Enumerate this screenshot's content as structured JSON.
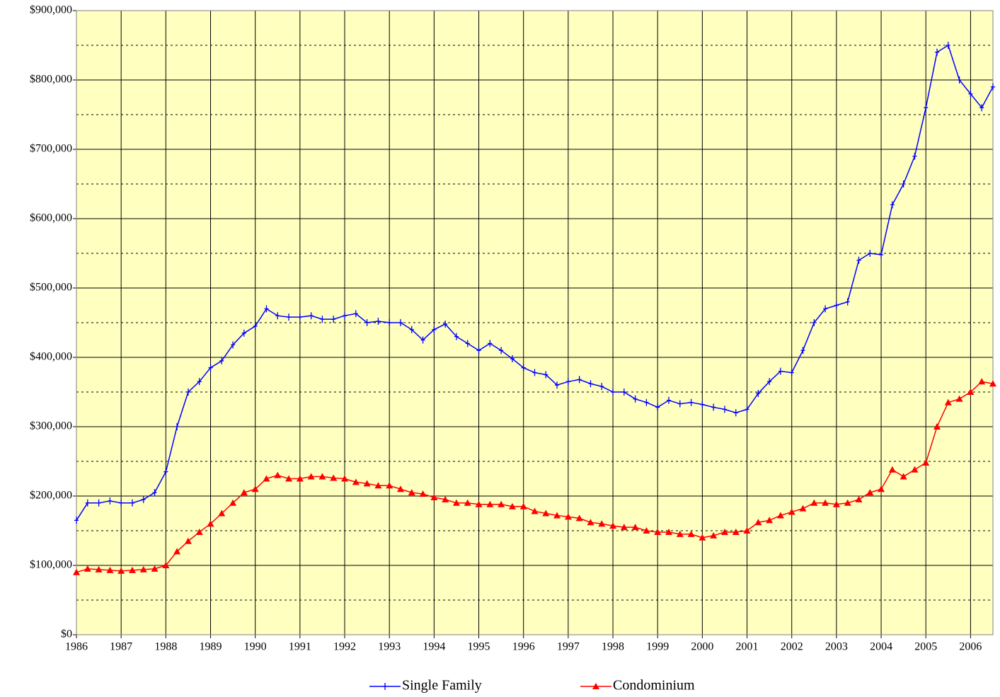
{
  "chart_data": {
    "type": "line",
    "x": [
      1986,
      1986.25,
      1986.5,
      1986.75,
      1987,
      1987.25,
      1987.5,
      1987.75,
      1988,
      1988.25,
      1988.5,
      1988.75,
      1989,
      1989.25,
      1989.5,
      1989.75,
      1990,
      1990.25,
      1990.5,
      1990.75,
      1991,
      1991.25,
      1991.5,
      1991.75,
      1992,
      1992.25,
      1992.5,
      1992.75,
      1993,
      1993.25,
      1993.5,
      1993.75,
      1994,
      1994.25,
      1994.5,
      1994.75,
      1995,
      1995.25,
      1995.5,
      1995.75,
      1996,
      1996.25,
      1996.5,
      1996.75,
      1997,
      1997.25,
      1997.5,
      1997.75,
      1998,
      1998.25,
      1998.5,
      1998.75,
      1999,
      1999.25,
      1999.5,
      1999.75,
      2000,
      2000.25,
      2000.5,
      2000.75,
      2001,
      2001.25,
      2001.5,
      2001.75,
      2002,
      2002.25,
      2002.5,
      2002.75,
      2003,
      2003.25,
      2003.5,
      2003.75,
      2004,
      2004.25,
      2004.5,
      2004.75,
      2005,
      2005.25,
      2005.5,
      2005.75,
      2006,
      2006.25,
      2006.5
    ],
    "series": [
      {
        "name": "Single Family",
        "color": "#0000ff",
        "marker": "plus",
        "values": [
          165000,
          190000,
          190000,
          193000,
          190000,
          190000,
          195000,
          205000,
          235000,
          300000,
          350000,
          365000,
          385000,
          395000,
          418000,
          435000,
          445000,
          470000,
          460000,
          458000,
          458000,
          460000,
          455000,
          455000,
          460000,
          463000,
          450000,
          452000,
          450000,
          450000,
          440000,
          425000,
          440000,
          448000,
          430000,
          420000,
          410000,
          420000,
          410000,
          398000,
          385000,
          378000,
          375000,
          360000,
          365000,
          368000,
          362000,
          358000,
          350000,
          350000,
          340000,
          335000,
          328000,
          338000,
          333000,
          335000,
          332000,
          328000,
          325000,
          320000,
          325000,
          348000,
          365000,
          380000,
          378000,
          410000,
          450000,
          470000,
          475000,
          480000,
          540000,
          550000,
          548000,
          620000,
          650000,
          690000,
          760000,
          840000,
          850000,
          800000,
          780000,
          760000,
          790000
        ]
      },
      {
        "name": "Condominium",
        "color": "#ff0000",
        "marker": "triangle",
        "values": [
          90000,
          95000,
          94000,
          93000,
          92000,
          93000,
          94000,
          95000,
          100000,
          120000,
          135000,
          148000,
          160000,
          175000,
          190000,
          205000,
          210000,
          225000,
          230000,
          225000,
          225000,
          228000,
          228000,
          226000,
          225000,
          220000,
          218000,
          215000,
          215000,
          210000,
          205000,
          203000,
          198000,
          195000,
          190000,
          190000,
          188000,
          188000,
          188000,
          185000,
          185000,
          178000,
          175000,
          172000,
          170000,
          168000,
          162000,
          160000,
          157000,
          155000,
          155000,
          150000,
          148000,
          148000,
          145000,
          145000,
          140000,
          143000,
          148000,
          148000,
          150000,
          162000,
          165000,
          172000,
          177000,
          182000,
          190000,
          190000,
          188000,
          190000,
          195000,
          205000,
          210000,
          238000,
          228000,
          238000,
          248000,
          300000,
          335000,
          340000,
          350000,
          365000,
          362000
        ]
      }
    ],
    "xlim": [
      1986,
      2006.5
    ],
    "xticks": [
      1986,
      1987,
      1988,
      1989,
      1990,
      1991,
      1992,
      1993,
      1994,
      1995,
      1996,
      1997,
      1998,
      1999,
      2000,
      2001,
      2002,
      2003,
      2004,
      2005,
      2006
    ],
    "ylim": [
      0,
      900000
    ],
    "yticks": [
      {
        "value": 0,
        "label": "$0"
      },
      {
        "value": 100000,
        "label": "$100,000"
      },
      {
        "value": 200000,
        "label": "$200,000"
      },
      {
        "value": 300000,
        "label": "$300,000"
      },
      {
        "value": 400000,
        "label": "$400,000"
      },
      {
        "value": 500000,
        "label": "$500,000"
      },
      {
        "value": 600000,
        "label": "$600,000"
      },
      {
        "value": 700000,
        "label": "$700,000"
      },
      {
        "value": 800000,
        "label": "$800,000"
      },
      {
        "value": 900000,
        "label": "$900,000"
      }
    ],
    "grid": true,
    "minor_grid": true,
    "plot_background": "#ffffc0",
    "legend": "bottom"
  }
}
